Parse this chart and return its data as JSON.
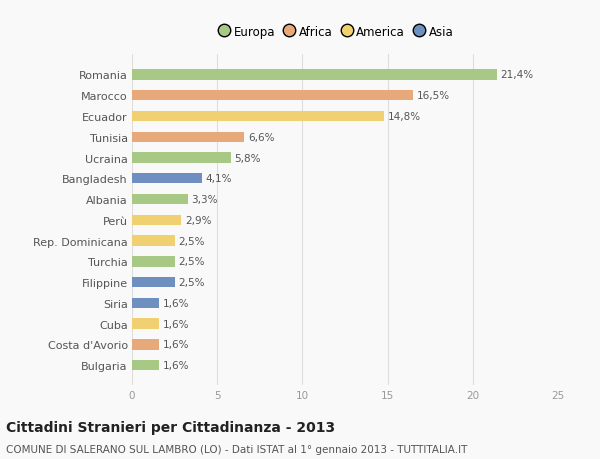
{
  "countries": [
    "Romania",
    "Marocco",
    "Ecuador",
    "Tunisia",
    "Ucraina",
    "Bangladesh",
    "Albania",
    "Perù",
    "Rep. Dominicana",
    "Turchia",
    "Filippine",
    "Siria",
    "Cuba",
    "Costa d'Avorio",
    "Bulgaria"
  ],
  "values": [
    21.4,
    16.5,
    14.8,
    6.6,
    5.8,
    4.1,
    3.3,
    2.9,
    2.5,
    2.5,
    2.5,
    1.6,
    1.6,
    1.6,
    1.6
  ],
  "labels": [
    "21,4%",
    "16,5%",
    "14,8%",
    "6,6%",
    "5,8%",
    "4,1%",
    "3,3%",
    "2,9%",
    "2,5%",
    "2,5%",
    "2,5%",
    "1,6%",
    "1,6%",
    "1,6%",
    "1,6%"
  ],
  "categories": [
    "Europa",
    "Africa",
    "America",
    "Africa",
    "Europa",
    "Asia",
    "Europa",
    "America",
    "America",
    "Europa",
    "Asia",
    "Asia",
    "America",
    "Africa",
    "Europa"
  ],
  "colors": {
    "Europa": "#a8c885",
    "Africa": "#e8a97a",
    "America": "#f0d070",
    "Asia": "#6e8fc0"
  },
  "legend_order": [
    "Europa",
    "Africa",
    "America",
    "Asia"
  ],
  "xlim": [
    0,
    25
  ],
  "xticks": [
    0,
    5,
    10,
    15,
    20,
    25
  ],
  "title": "Cittadini Stranieri per Cittadinanza - 2013",
  "subtitle": "COMUNE DI SALERANO SUL LAMBRO (LO) - Dati ISTAT al 1° gennaio 2013 - TUTTITALIA.IT",
  "background_color": "#f9f9f9",
  "bar_height": 0.5,
  "title_fontsize": 10,
  "subtitle_fontsize": 7.5,
  "label_fontsize": 7.5,
  "ytick_fontsize": 8,
  "xtick_fontsize": 7.5
}
